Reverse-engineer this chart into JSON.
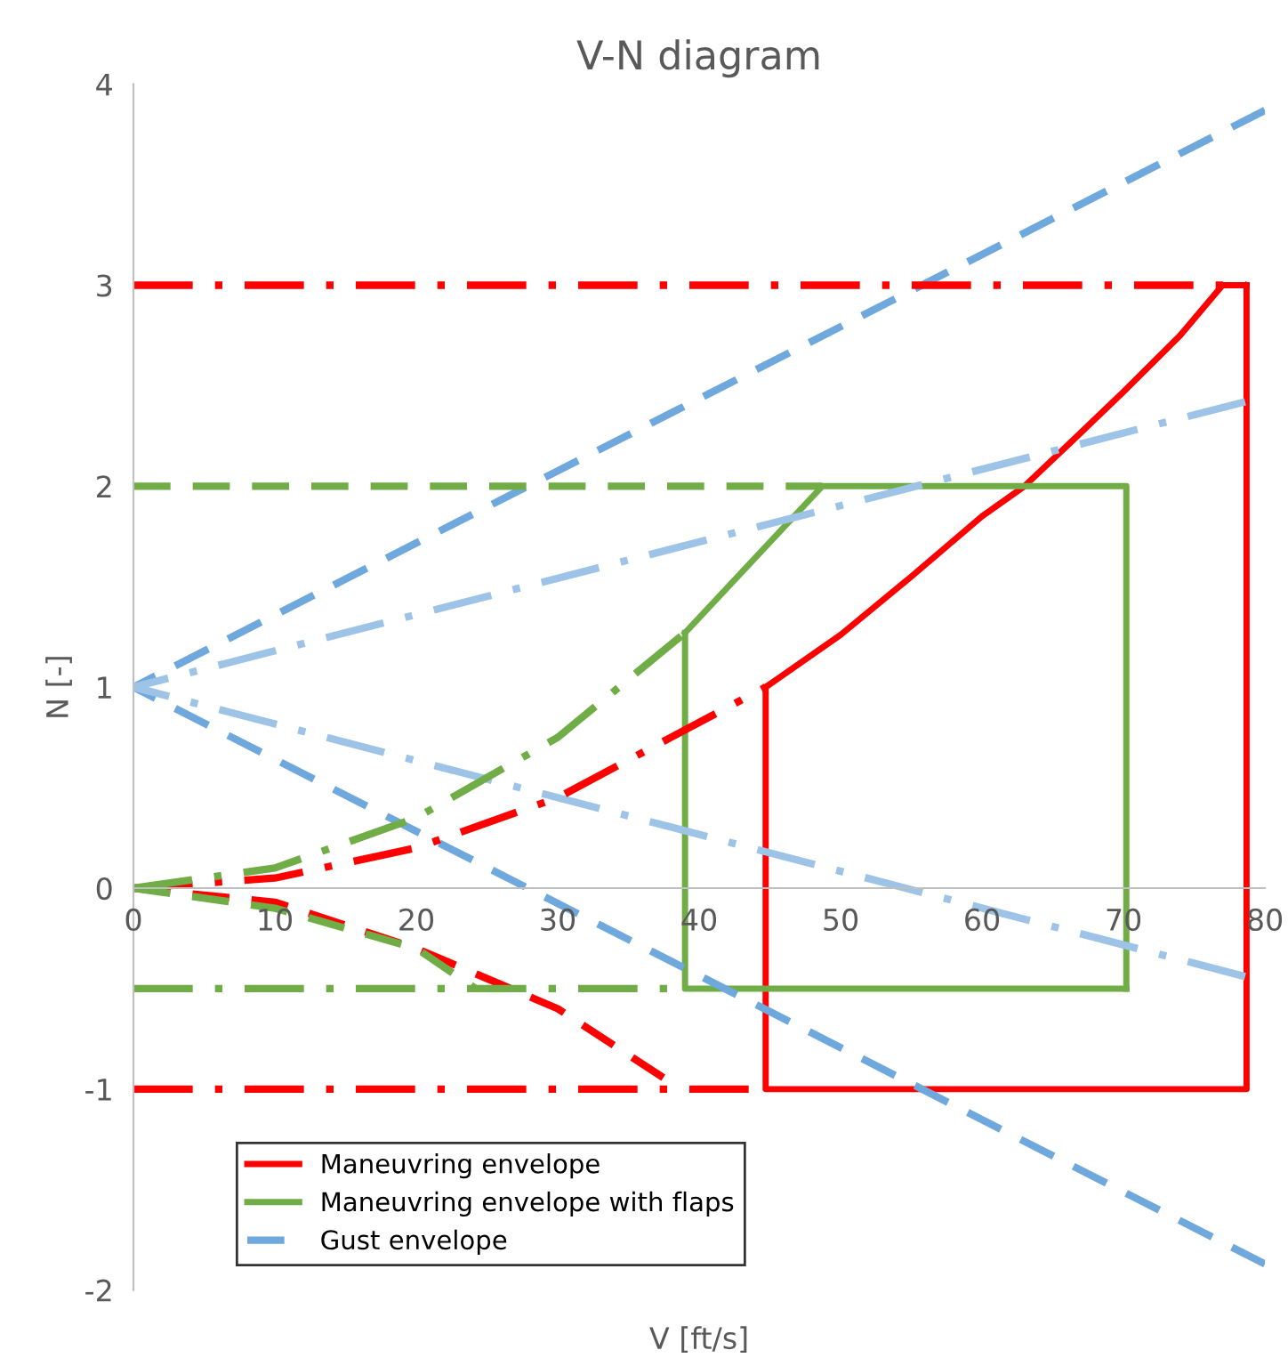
{
  "chart_data": {
    "type": "line",
    "title": "V-N diagram",
    "xlabel": "V [ft/s]",
    "ylabel": "N [-]",
    "xlim": [
      0,
      80
    ],
    "ylim": [
      -2,
      4
    ],
    "xticks": [
      0,
      10,
      20,
      30,
      40,
      50,
      60,
      70,
      80
    ],
    "yticks": [
      -2,
      -1,
      0,
      1,
      2,
      3,
      4
    ],
    "grid": false,
    "legend": "bottom left",
    "marker": "none",
    "series": [
      {
        "name": "Maneuvring envelope",
        "color": "#ff0000",
        "line_style": "solid",
        "x": [
          44.7,
          50,
          55,
          60,
          63,
          66,
          70,
          74,
          77,
          78.7
        ],
        "values": [
          1.0,
          1.26,
          1.55,
          1.85,
          2.0,
          2.2,
          2.47,
          2.75,
          3.0,
          3.0
        ]
      },
      {
        "color": "#ff0000",
        "line_style": "solid",
        "x": [
          44.7,
          44.7,
          78.7,
          78.7
        ],
        "values": [
          1.0,
          -1.0,
          -1.0,
          3.0
        ]
      },
      {
        "name": "Maneuvring envelope with flaps",
        "color": "#70ad47",
        "line_style": "solid",
        "x": [
          39,
          48.7,
          70.2,
          70.2
        ],
        "values": [
          1.27,
          2.0,
          2.0,
          -0.5
        ]
      },
      {
        "color": "#70ad47",
        "line_style": "solid",
        "x": [
          39,
          39,
          70.2
        ],
        "values": [
          1.27,
          -0.5,
          -0.5
        ]
      },
      {
        "name": "Gust envelope",
        "color": "#6fa8dc",
        "line_style": "dashed",
        "x": [
          80,
          0
        ],
        "values": [
          3.87,
          1
        ]
      },
      {
        "color": "#6fa8dc",
        "line_style": "dashed",
        "x": [
          80,
          0
        ],
        "values": [
          -1.87,
          1
        ]
      },
      {
        "color": "#9dc3e6",
        "line_style": "dashdot",
        "x": [
          78.6,
          0
        ],
        "values": [
          2.42,
          1
        ]
      },
      {
        "color": "#9dc3e6",
        "line_style": "dashdot",
        "x": [
          78.6,
          0
        ],
        "values": [
          -0.44,
          1
        ]
      },
      {
        "color": "#ff0000",
        "line_style": "dashdot",
        "x": [
          0,
          10,
          20,
          30,
          38,
          44.7
        ],
        "values": [
          0,
          0.05,
          0.2,
          0.45,
          0.75,
          1.0
        ]
      },
      {
        "color": "#ff0000",
        "line_style": "dashed",
        "x": [
          0,
          10,
          20,
          30,
          38.7
        ],
        "values": [
          0,
          -0.07,
          -0.3,
          -0.6,
          -1.0
        ]
      },
      {
        "color": "#ff0000",
        "line_style": "dashdot",
        "x": [
          0,
          38.7,
          44.7
        ],
        "values": [
          -1,
          -1,
          -1
        ]
      },
      {
        "color": "#ff0000",
        "line_style": "dashdot",
        "x": [
          0,
          78.7
        ],
        "values": [
          3,
          3
        ]
      },
      {
        "color": "#70ad47",
        "line_style": "dashdot",
        "x": [
          0,
          10,
          20,
          30,
          39
        ],
        "values": [
          0,
          0.1,
          0.35,
          0.75,
          1.27
        ]
      },
      {
        "color": "#70ad47",
        "line_style": "dashed",
        "x": [
          0,
          10,
          20,
          24.2
        ],
        "values": [
          0,
          -0.1,
          -0.3,
          -0.5
        ]
      },
      {
        "color": "#70ad47",
        "line_style": "dashdot",
        "x": [
          0,
          39
        ],
        "values": [
          -0.5,
          -0.5
        ]
      },
      {
        "color": "#70ad47",
        "line_style": "dashed",
        "x": [
          0,
          48.7
        ],
        "values": [
          2,
          2
        ]
      }
    ]
  }
}
